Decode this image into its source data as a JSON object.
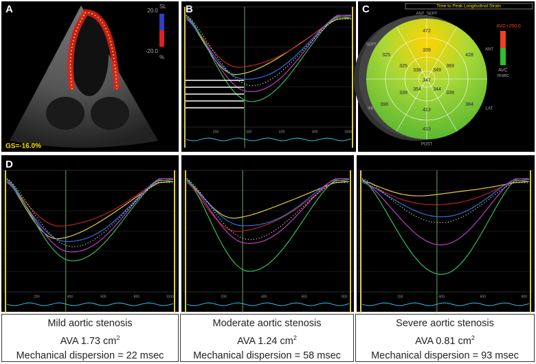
{
  "panels": {
    "a": {
      "label": "A",
      "scale_title": "SL",
      "scale_max": "20.0",
      "scale_min": "-20.0",
      "scale_unit": "%",
      "global_strain": "GS=-16.0%"
    },
    "b": {
      "label": "B",
      "x_ticks": [
        "200",
        "400",
        "600",
        "800",
        "1000"
      ]
    },
    "c": {
      "label": "C",
      "title": "Time to Peak Longitudinal Strain",
      "wall_labels": [
        "ANT_SEPT",
        "ANT",
        "LAT",
        "POST",
        "INF",
        "SEPT"
      ],
      "legend_top": "AVC+250.0",
      "legend_bottom": "AVC",
      "legend_unit": "msec",
      "segment_values": [
        472,
        428,
        384,
        413,
        398,
        325,
        339,
        369,
        339,
        413,
        339,
        325,
        338,
        349,
        354,
        344,
        347
      ]
    },
    "d": {
      "label": "D",
      "plots": [
        {
          "x_ticks": [
            "200",
            "400",
            "600",
            "800",
            "1000"
          ]
        },
        {
          "x_ticks": [
            "200",
            "400",
            "600",
            "800"
          ]
        },
        {
          "x_ticks": [
            "200",
            "400",
            "600",
            "800"
          ]
        }
      ]
    }
  },
  "captions": [
    {
      "title": "Mild aortic stenosis",
      "ava": "AVA 1.73 cm",
      "ava_sup": "2",
      "dispersion": "Mechanical dispersion = 22 msec"
    },
    {
      "title": "Moderate aortic stenosis",
      "ava": "AVA 1.24 cm",
      "ava_sup": "2",
      "dispersion": "Mechanical dispersion = 58 msec"
    },
    {
      "title": "Severe aortic stenosis",
      "ava": "AVA 0.81 cm",
      "ava_sup": "2",
      "dispersion": "Mechanical dispersion = 93 msec"
    }
  ]
}
